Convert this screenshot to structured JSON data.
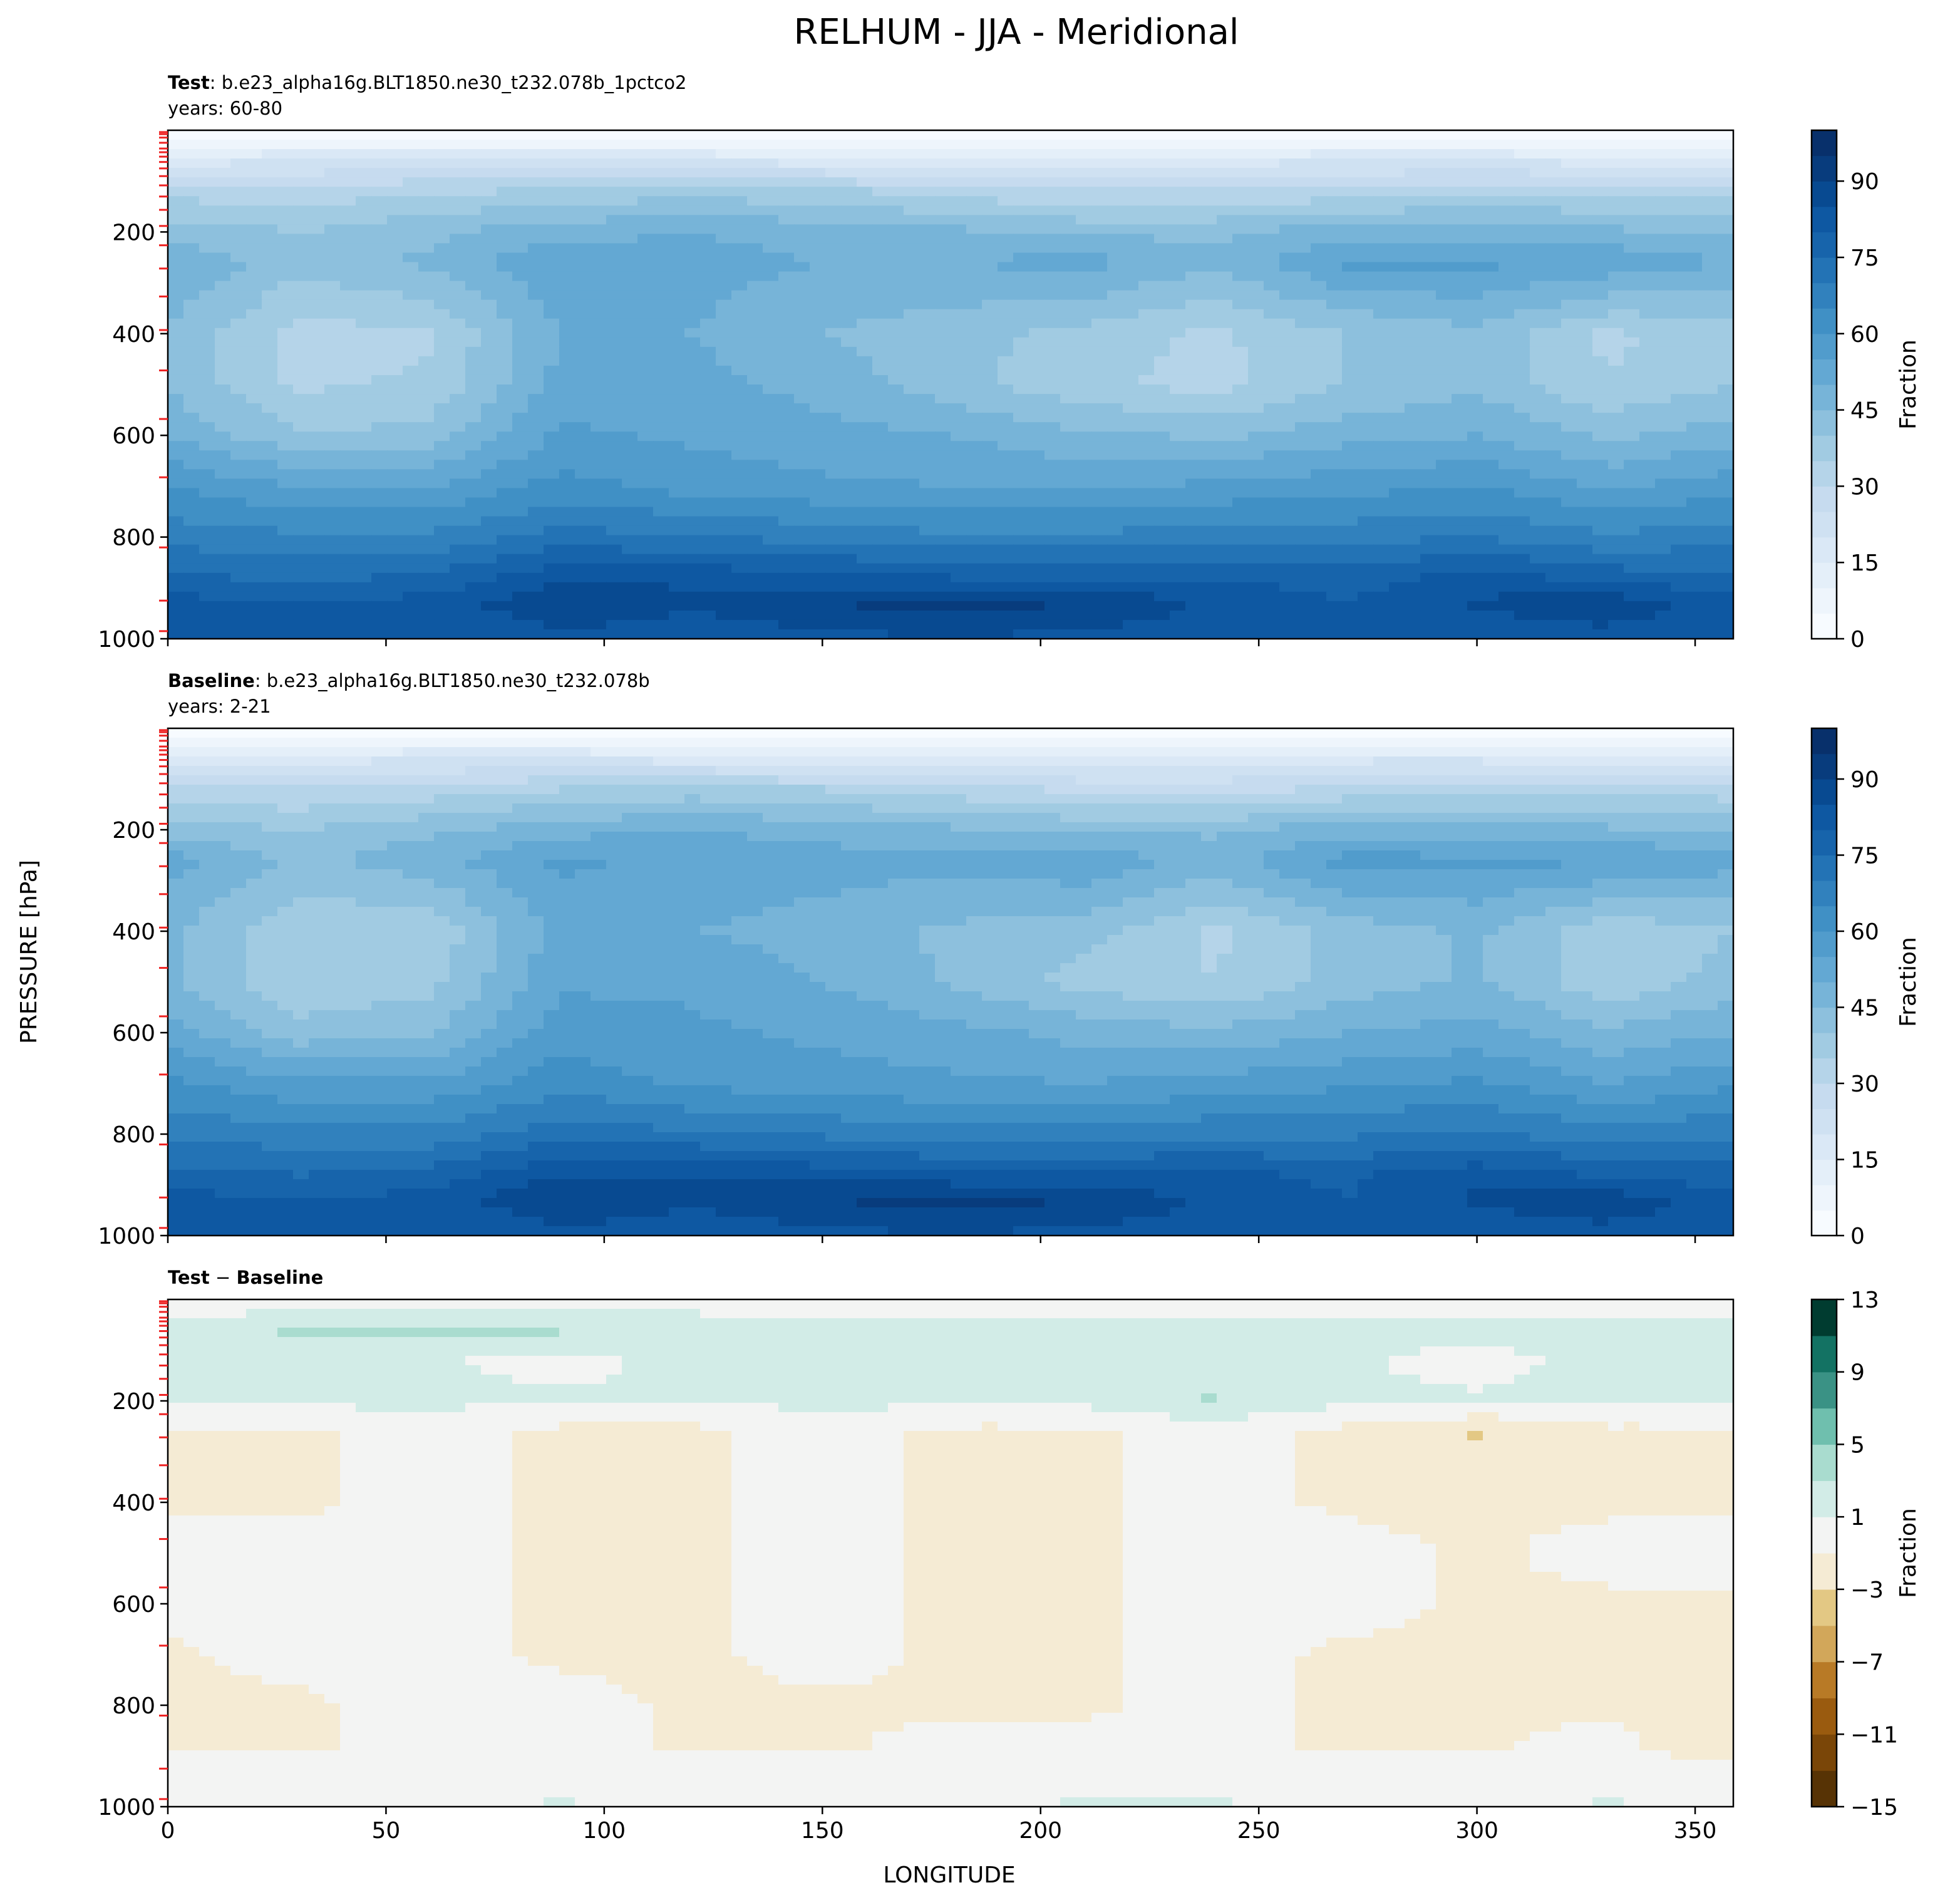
{
  "figure": {
    "title": "RELHUM - JJA - Meridional",
    "ylabel": "PRESSURE [hPa]",
    "xlabel": "LONGITUDE"
  },
  "chart_data": [
    {
      "type": "heatmap",
      "label_bold": "Test",
      "label_rest": ": b.e23_alpha16g.BLT1850.ne30_t232.078b_1pctco2",
      "years": "years: 60-80",
      "x_ticks": [
        0,
        50,
        100,
        150,
        200,
        250,
        300,
        350
      ],
      "x_tick_labels_visible": false,
      "xlim": [
        0,
        358.75
      ],
      "y_ticks": [
        200,
        400,
        600,
        800,
        1000
      ],
      "ylim": [
        1000,
        0
      ],
      "model_levels_hPa": [
        3.6,
        7.6,
        14.4,
        24.6,
        35.9,
        43.2,
        51.9,
        62.4,
        75.0,
        90.2,
        108.4,
        130.3,
        156.5,
        188.2,
        226.2,
        271.9,
        326.9,
        392.9,
        472.3,
        567.8,
        682.5,
        820.4,
        925.0,
        985.0
      ],
      "colorbar": {
        "label": "Fraction",
        "ticks": [
          0,
          15,
          30,
          45,
          60,
          75,
          90
        ],
        "levels": [
          0,
          5,
          10,
          15,
          20,
          25,
          30,
          35,
          40,
          45,
          50,
          55,
          60,
          65,
          70,
          75,
          80,
          85,
          90,
          95,
          100
        ],
        "colors": [
          "#f7fbff",
          "#eef5fc",
          "#e4eff9",
          "#dae8f6",
          "#cfe1f2",
          "#c6dbef",
          "#b5d4e9",
          "#a1cbe2",
          "#8dc0dd",
          "#77b4d8",
          "#63a8d3",
          "#519ccc",
          "#4090c5",
          "#3181bd",
          "#2373b5",
          "#1764ab",
          "#0e58a2",
          "#084a91",
          "#083c7d",
          "#08306b"
        ]
      },
      "approx_relhum_percent": {
        "pressure_hPa": [
          10,
          60,
          120,
          200,
          260,
          400,
          500,
          600,
          700,
          800,
          880,
          930,
          990
        ],
        "longitude": [
          0,
          30,
          60,
          90,
          120,
          150,
          180,
          210,
          240,
          270,
          300,
          330,
          358.75
        ],
        "values": [
          [
            3,
            3,
            3,
            3,
            3,
            3,
            3,
            3,
            3,
            3,
            3,
            3,
            3
          ],
          [
            18,
            20,
            22,
            22,
            20,
            18,
            16,
            16,
            18,
            20,
            20,
            18,
            18
          ],
          [
            33,
            32,
            34,
            36,
            38,
            36,
            33,
            30,
            30,
            32,
            34,
            34,
            33
          ],
          [
            43,
            40,
            44,
            48,
            50,
            48,
            46,
            44,
            44,
            48,
            48,
            46,
            44
          ],
          [
            50,
            42,
            46,
            55,
            52,
            50,
            50,
            52,
            46,
            56,
            56,
            54,
            50
          ],
          [
            44,
            33,
            34,
            50,
            50,
            45,
            42,
            38,
            34,
            40,
            44,
            34,
            38
          ],
          [
            44,
            34,
            36,
            52,
            52,
            48,
            42,
            36,
            33,
            40,
            44,
            35,
            40
          ],
          [
            50,
            40,
            42,
            56,
            54,
            52,
            50,
            46,
            44,
            48,
            50,
            44,
            48
          ],
          [
            60,
            55,
            55,
            62,
            58,
            56,
            55,
            54,
            56,
            58,
            60,
            54,
            58
          ],
          [
            68,
            66,
            66,
            72,
            70,
            68,
            66,
            66,
            68,
            68,
            70,
            66,
            68
          ],
          [
            76,
            74,
            76,
            84,
            84,
            82,
            80,
            80,
            80,
            78,
            82,
            78,
            76
          ],
          [
            82,
            80,
            82,
            90,
            86,
            90,
            92,
            90,
            84,
            80,
            86,
            88,
            82
          ],
          [
            82,
            80,
            80,
            84,
            82,
            84,
            86,
            84,
            82,
            80,
            82,
            84,
            82
          ]
        ]
      }
    },
    {
      "type": "heatmap",
      "label_bold": "Baseline",
      "label_rest": ": b.e23_alpha16g.BLT1850.ne30_t232.078b",
      "years": "years: 2-21",
      "x_ticks": [
        0,
        50,
        100,
        150,
        200,
        250,
        300,
        350
      ],
      "x_tick_labels_visible": false,
      "xlim": [
        0,
        358.75
      ],
      "y_ticks": [
        200,
        400,
        600,
        800,
        1000
      ],
      "ylim": [
        1000,
        0
      ],
      "model_levels_hPa": [
        3.6,
        7.6,
        14.4,
        24.6,
        35.9,
        43.2,
        51.9,
        62.4,
        75.0,
        90.2,
        108.4,
        130.3,
        156.5,
        188.2,
        226.2,
        271.9,
        326.9,
        392.9,
        472.3,
        567.8,
        682.5,
        820.4,
        925.0,
        985.0
      ],
      "colorbar": {
        "label": "Fraction",
        "ticks": [
          0,
          15,
          30,
          45,
          60,
          75,
          90
        ],
        "levels": [
          0,
          5,
          10,
          15,
          20,
          25,
          30,
          35,
          40,
          45,
          50,
          55,
          60,
          65,
          70,
          75,
          80,
          85,
          90,
          95,
          100
        ],
        "colors": [
          "#f7fbff",
          "#eef5fc",
          "#e4eff9",
          "#dae8f6",
          "#cfe1f2",
          "#c6dbef",
          "#b5d4e9",
          "#a1cbe2",
          "#8dc0dd",
          "#77b4d8",
          "#63a8d3",
          "#519ccc",
          "#4090c5",
          "#3181bd",
          "#2373b5",
          "#1764ab",
          "#0e58a2",
          "#084a91",
          "#083c7d",
          "#08306b"
        ]
      },
      "approx_relhum_percent": {
        "pressure_hPa": [
          10,
          60,
          120,
          200,
          260,
          400,
          500,
          600,
          700,
          800,
          880,
          930,
          990
        ],
        "longitude": [
          0,
          30,
          60,
          90,
          120,
          150,
          180,
          210,
          240,
          270,
          300,
          330,
          358.75
        ],
        "values": [
          [
            3,
            3,
            3,
            3,
            3,
            3,
            3,
            3,
            3,
            3,
            3,
            3,
            3
          ],
          [
            17,
            18,
            20,
            20,
            18,
            16,
            15,
            15,
            17,
            19,
            19,
            17,
            17
          ],
          [
            32,
            30,
            32,
            35,
            37,
            35,
            32,
            29,
            28,
            31,
            33,
            33,
            32
          ],
          [
            43,
            40,
            44,
            48,
            50,
            48,
            46,
            44,
            44,
            48,
            48,
            46,
            44
          ],
          [
            52,
            44,
            48,
            56,
            54,
            52,
            52,
            54,
            48,
            57,
            56,
            56,
            52
          ],
          [
            46,
            36,
            36,
            52,
            50,
            48,
            44,
            42,
            34,
            42,
            46,
            36,
            40
          ],
          [
            46,
            36,
            38,
            54,
            54,
            50,
            44,
            38,
            35,
            42,
            46,
            36,
            42
          ],
          [
            52,
            42,
            44,
            58,
            56,
            54,
            52,
            48,
            46,
            50,
            52,
            46,
            50
          ],
          [
            61,
            56,
            56,
            63,
            59,
            57,
            56,
            55,
            57,
            59,
            61,
            55,
            59
          ],
          [
            69,
            67,
            67,
            73,
            71,
            69,
            67,
            67,
            69,
            69,
            71,
            67,
            69
          ],
          [
            77,
            75,
            77,
            85,
            85,
            83,
            81,
            81,
            81,
            79,
            83,
            79,
            77
          ],
          [
            82,
            80,
            82,
            90,
            86,
            90,
            92,
            90,
            84,
            80,
            86,
            88,
            82
          ],
          [
            82,
            80,
            80,
            84,
            82,
            84,
            86,
            84,
            82,
            80,
            82,
            84,
            82
          ]
        ]
      }
    },
    {
      "type": "heatmap",
      "label_bold": "Test",
      "label_op": " − ",
      "label_bold2": "Baseline",
      "x_ticks": [
        0,
        50,
        100,
        150,
        200,
        250,
        300,
        350
      ],
      "xlim": [
        0,
        358.75
      ],
      "y_ticks": [
        200,
        400,
        600,
        800,
        1000
      ],
      "ylim": [
        1000,
        0
      ],
      "model_levels_hPa": [
        3.6,
        7.6,
        14.4,
        24.6,
        35.9,
        43.2,
        51.9,
        62.4,
        75.0,
        90.2,
        108.4,
        130.3,
        156.5,
        188.2,
        226.2,
        271.9,
        326.9,
        392.9,
        472.3,
        567.8,
        682.5,
        820.4,
        925.0,
        985.0
      ],
      "colorbar": {
        "label": "Fraction",
        "ticks": [
          13,
          9,
          5,
          1,
          -3,
          -7,
          -11,
          -15
        ],
        "levels": [
          -15,
          -13,
          -11,
          -9,
          -7,
          -5,
          -3,
          -1,
          1,
          3,
          5,
          7,
          9,
          11,
          13
        ],
        "colors": [
          "#573305",
          "#7a4608",
          "#9a5b0f",
          "#b87a26",
          "#d2a75a",
          "#e3c884",
          "#f5ebd4",
          "#f3f4f3",
          "#d2ece7",
          "#a9dccf",
          "#6fbfae",
          "#3a9285",
          "#137263",
          "#003c30"
        ]
      },
      "approx_diff_percent": {
        "pressure_hPa": [
          10,
          60,
          120,
          200,
          260,
          400,
          500,
          600,
          700,
          800,
          880,
          930,
          990
        ],
        "longitude": [
          0,
          30,
          60,
          90,
          120,
          150,
          180,
          210,
          240,
          270,
          300,
          330,
          358.75
        ],
        "values": [
          [
            0,
            0,
            0,
            0,
            0,
            0,
            0,
            0,
            0,
            0,
            0,
            0,
            0
          ],
          [
            1.5,
            3.5,
            3.5,
            3.2,
            3.0,
            1.5,
            1.5,
            1.5,
            1.5,
            1.5,
            1.5,
            1.5,
            1.5
          ],
          [
            1.5,
            2.0,
            1.2,
            0.5,
            1.5,
            1.5,
            1.5,
            1.5,
            1.5,
            1.2,
            0.5,
            1.5,
            1.5
          ],
          [
            1.5,
            1.5,
            1.5,
            1.2,
            1.2,
            1.5,
            1.5,
            1.5,
            3.2,
            1.2,
            1.2,
            1.5,
            1.5
          ],
          [
            -1.5,
            -1.5,
            0,
            -1.5,
            -1.5,
            0,
            -1.5,
            -1.5,
            0,
            -1.5,
            -3.2,
            -1.5,
            -1.5
          ],
          [
            -1.5,
            -1.5,
            0,
            -1.5,
            -1.5,
            0,
            -1.5,
            -1.5,
            0,
            -1.5,
            -1.5,
            -1.5,
            -1.5
          ],
          [
            0,
            0,
            0,
            -1.5,
            -1.5,
            0,
            -1.5,
            -1.5,
            0,
            0,
            -1.5,
            0,
            0
          ],
          [
            0,
            0,
            0,
            -1.5,
            -1.5,
            0,
            -1.5,
            -1.5,
            0,
            0,
            -1.5,
            -1.5,
            -1.5
          ],
          [
            -1.5,
            0,
            0,
            -1.5,
            -1.5,
            0,
            -1.5,
            -1.5,
            0,
            -1.5,
            -1.5,
            -1.5,
            -1.5
          ],
          [
            -1.5,
            -1.5,
            0,
            0,
            -1.5,
            -1.5,
            -1.5,
            -1.5,
            0,
            -1.5,
            -1.5,
            -1.5,
            -1.5
          ],
          [
            -1.5,
            -1.5,
            0,
            0,
            -1.5,
            -1.5,
            0,
            0,
            0,
            -1.5,
            -1.5,
            0,
            -3.2
          ],
          [
            0,
            0,
            0,
            0,
            0,
            0,
            0,
            0,
            0,
            0,
            0,
            0,
            0
          ],
          [
            0,
            0,
            0,
            1.2,
            0,
            0,
            0,
            1.2,
            1.2,
            0,
            0,
            1.2,
            0
          ]
        ]
      }
    }
  ]
}
